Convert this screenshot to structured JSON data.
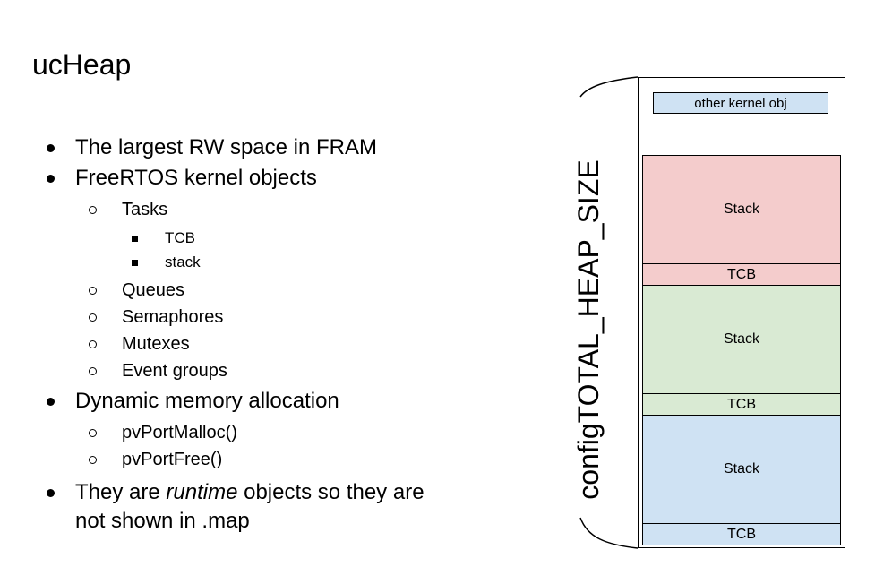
{
  "title": "ucHeap",
  "bullets": {
    "b1": "The largest RW space in FRAM",
    "b2": "FreeRTOS kernel objects",
    "b2_tasks": "Tasks",
    "b2_tcb": "TCB",
    "b2_stack": "stack",
    "b2_queues": "Queues",
    "b2_semaphores": "Semaphores",
    "b2_mutexes": "Mutexes",
    "b2_event_groups": "Event groups",
    "b3": "Dynamic memory allocation",
    "b3_malloc": "pvPortMalloc()",
    "b3_free": "pvPortFree()",
    "b4_pre": "They are ",
    "b4_italic": "runtime",
    "b4_post": " objects so they are",
    "b4_line2": "not shown in .map"
  },
  "diagram": {
    "heap_label": "configTOTAL_HEAP_SIZE",
    "other_label": "other kernel obj",
    "blocks": [
      {
        "stack_label": "Stack",
        "tcb_label": "TCB",
        "color": "#f4cccc"
      },
      {
        "stack_label": "Stack",
        "tcb_label": "TCB",
        "color": "#d9ead3"
      },
      {
        "stack_label": "Stack",
        "tcb_label": "TCB",
        "color": "#cfe2f3"
      }
    ],
    "other_color": "#cfe2f3"
  }
}
